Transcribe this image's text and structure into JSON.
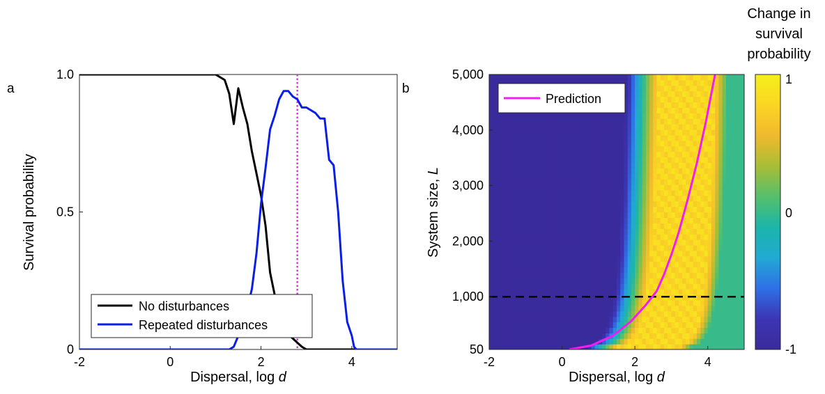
{
  "panels": {
    "a": "a",
    "b": "b"
  },
  "colorbar": {
    "title_lines": [
      "Change in",
      "survival",
      "probability"
    ],
    "ticks": [
      "1",
      "0",
      "-1"
    ],
    "stops": [
      "#3a2b9c",
      "#3c35b4",
      "#2f6fe6",
      "#22a9d4",
      "#1bb5a9",
      "#56bf6c",
      "#a8be35",
      "#f0b92e",
      "#fbd524",
      "#f4f01b"
    ]
  },
  "chart_data": [
    {
      "id": "a",
      "type": "line",
      "xlabel_main": "Dispersal, log ",
      "xlabel_var": "d",
      "ylabel": "Survival probability",
      "xlim": [
        -2,
        5
      ],
      "ylim": [
        0,
        1
      ],
      "xticks": [
        -2,
        0,
        2,
        4
      ],
      "xtick_labels": [
        "-2",
        "0",
        "2",
        "4"
      ],
      "yticks": [
        0,
        0.5,
        1
      ],
      "ytick_labels": [
        "0",
        "0.5",
        "1.0"
      ],
      "legend_position": "bottom-left",
      "vline": {
        "x": 2.8,
        "color": "#e62ee6"
      },
      "series": [
        {
          "name": "No disturbances",
          "color": "#000000",
          "x": [
            -2,
            1.0,
            1.2,
            1.3,
            1.4,
            1.5,
            1.6,
            1.7,
            1.8,
            1.9,
            2.0,
            2.1,
            2.2,
            2.3,
            2.5,
            2.7,
            2.9,
            3.0,
            5
          ],
          "y": [
            1.0,
            1.0,
            0.98,
            0.93,
            0.82,
            0.95,
            0.88,
            0.82,
            0.72,
            0.64,
            0.56,
            0.45,
            0.28,
            0.2,
            0.07,
            0.04,
            0.01,
            0.0,
            0.0
          ]
        },
        {
          "name": "Repeated disturbances",
          "color": "#0a1ee6",
          "x": [
            -2,
            1.3,
            1.4,
            1.5,
            1.6,
            1.7,
            1.8,
            1.9,
            2.0,
            2.1,
            2.2,
            2.3,
            2.4,
            2.5,
            2.6,
            2.7,
            2.8,
            2.9,
            3.0,
            3.1,
            3.2,
            3.3,
            3.4,
            3.5,
            3.6,
            3.7,
            3.8,
            3.9,
            4.0,
            4.05,
            4.1,
            5
          ],
          "y": [
            0.0,
            0.0,
            0.01,
            0.05,
            0.1,
            0.15,
            0.22,
            0.35,
            0.53,
            0.66,
            0.8,
            0.85,
            0.91,
            0.94,
            0.94,
            0.92,
            0.91,
            0.88,
            0.88,
            0.87,
            0.86,
            0.84,
            0.84,
            0.69,
            0.67,
            0.5,
            0.25,
            0.1,
            0.05,
            0.01,
            0.0,
            0.0
          ]
        }
      ]
    },
    {
      "id": "b",
      "type": "heatmap",
      "xlabel_main": "Dispersal, log ",
      "xlabel_var": "d",
      "ylabel_main": "System size, ",
      "ylabel_var": "L",
      "xlim": [
        -2,
        5
      ],
      "ylim": [
        50,
        5000
      ],
      "xticks": [
        -2,
        0,
        2,
        4
      ],
      "xtick_labels": [
        "-2",
        "0",
        "2",
        "4"
      ],
      "yticks": [
        50,
        1000,
        2000,
        3000,
        4000,
        5000
      ],
      "ytick_labels": [
        "50",
        "1,000",
        "2,000",
        "3,000",
        "4,000",
        "5,000"
      ],
      "zlim": [
        -1,
        1
      ],
      "legend_position": "top-left",
      "hline": {
        "y": 1000,
        "color": "#000000"
      },
      "prediction": {
        "name": "Prediction",
        "color": "#f01ef0",
        "x": [
          0.2,
          0.8,
          1.4,
          1.9,
          2.3,
          2.6,
          2.8,
          3.0,
          3.2,
          3.45,
          3.7,
          3.95,
          4.2
        ],
        "y": [
          50,
          120,
          300,
          560,
          850,
          1100,
          1400,
          1750,
          2150,
          2750,
          3400,
          4150,
          5000
        ]
      }
    }
  ]
}
